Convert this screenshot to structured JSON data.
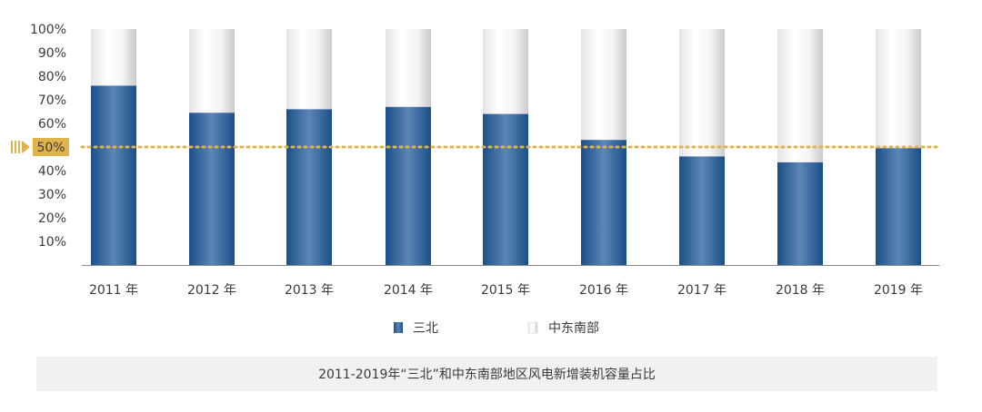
{
  "chart_data": {
    "type": "bar",
    "stacked": true,
    "categories": [
      "2011 年",
      "2012 年",
      "2013 年",
      "2014 年",
      "2015 年",
      "2016 年",
      "2017 年",
      "2018 年",
      "2019 年"
    ],
    "series": [
      {
        "name": "三北",
        "values": [
          76,
          64.5,
          66,
          67,
          64,
          53,
          46,
          43.5,
          49.5
        ],
        "color": "#1f5a96"
      },
      {
        "name": "中东南部",
        "values": [
          24,
          35.5,
          34,
          33,
          36,
          47,
          54,
          56.5,
          50.5
        ],
        "color": "#f3f3f5"
      }
    ],
    "yticks": [
      "10%",
      "20%",
      "30%",
      "40%",
      "50%",
      "60%",
      "70%",
      "80%",
      "90%",
      "100%"
    ],
    "ylim": [
      0,
      100
    ],
    "reference_line": {
      "value": 50,
      "label": "50%",
      "color": "#e0b24a"
    },
    "legend_position": "bottom",
    "title": "2011-2019年“三北”和中东南部地区风电新增装机容量占比"
  }
}
